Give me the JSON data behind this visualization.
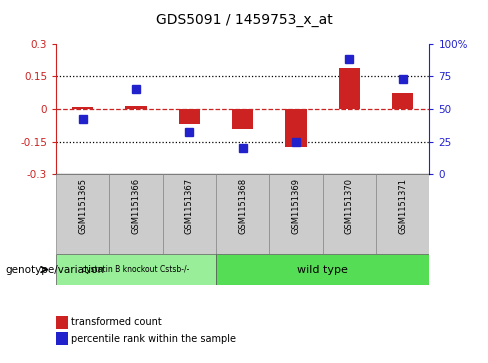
{
  "title": "GDS5091 / 1459753_x_at",
  "samples": [
    "GSM1151365",
    "GSM1151366",
    "GSM1151367",
    "GSM1151368",
    "GSM1151369",
    "GSM1151370",
    "GSM1151371"
  ],
  "red_values": [
    0.008,
    0.012,
    -0.07,
    -0.09,
    -0.175,
    0.19,
    0.072
  ],
  "blue_values": [
    42,
    65,
    32,
    20,
    25,
    88,
    73
  ],
  "ylim_left": [
    -0.3,
    0.3
  ],
  "ylim_right": [
    0,
    100
  ],
  "yticks_left": [
    -0.3,
    -0.15,
    0,
    0.15,
    0.3
  ],
  "yticks_right": [
    0,
    25,
    50,
    75,
    100
  ],
  "ytick_labels_right": [
    "0",
    "25",
    "50",
    "75",
    "100%"
  ],
  "hlines": [
    0.15,
    -0.15
  ],
  "red_color": "#cc2222",
  "blue_color": "#2222cc",
  "group1_label": "cystatin B knockout Cstsb-/-",
  "group2_label": "wild type",
  "group1_samples": [
    0,
    1,
    2
  ],
  "group2_samples": [
    3,
    4,
    5,
    6
  ],
  "group1_color": "#99ee99",
  "group2_color": "#55dd55",
  "legend_red": "transformed count",
  "legend_blue": "percentile rank within the sample",
  "genotype_label": "genotype/variation",
  "bg_color": "#cccccc",
  "plot_bg": "#ffffff",
  "title_fontsize": 10,
  "tick_fontsize": 7.5,
  "blue_marker_size": 6,
  "bar_width": 0.4
}
